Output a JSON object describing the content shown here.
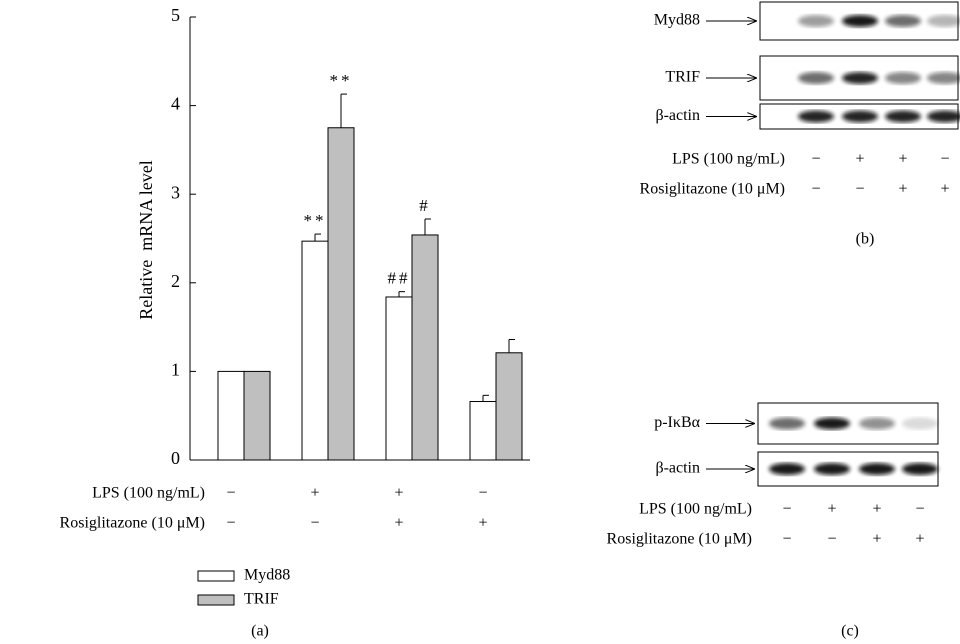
{
  "chart_data": {
    "type": "bar",
    "categories": [
      null,
      null,
      null,
      null
    ],
    "ylabel": "Relative  mRNA level",
    "ylim": [
      0,
      5
    ],
    "yticks": [
      0,
      1,
      2,
      3,
      4,
      5
    ],
    "series": [
      {
        "name": "Myd88",
        "color": "#ffffff",
        "values": [
          1,
          2.47,
          1.84,
          0.66
        ],
        "errors": [
          0,
          0.08,
          0.06,
          0.07
        ],
        "annotations": [
          null,
          "**",
          "##",
          null
        ]
      },
      {
        "name": "TRIF",
        "color": "#bfbfbf",
        "values": [
          1,
          3.75,
          2.54,
          1.21
        ],
        "errors": [
          0,
          0.38,
          0.18,
          0.15
        ],
        "annotations": [
          null,
          "**",
          "#",
          null
        ]
      }
    ],
    "conditions": [
      {
        "label": "LPS (100 ng/mL)",
        "signs": [
          "−",
          "+",
          "+",
          "−"
        ]
      },
      {
        "label": "Rosiglitazone (10 μM)",
        "signs": [
          "−",
          "−",
          "+",
          "+"
        ]
      }
    ],
    "panel_label": "(a)"
  },
  "blot_b": {
    "rows": [
      "Myd88",
      "TRIF",
      "β-actin"
    ],
    "conditions": [
      {
        "label": "LPS (100 ng/mL)",
        "signs": [
          "−",
          "+",
          "+",
          "−"
        ]
      },
      {
        "label": "Rosiglitazone (10 μM)",
        "signs": [
          "−",
          "−",
          "+",
          "+"
        ]
      }
    ],
    "panel_label": "(b)"
  },
  "blot_c": {
    "rows": [
      "p-IκBα",
      "β-actin"
    ],
    "conditions": [
      {
        "label": "LPS (100 ng/mL)",
        "signs": [
          "−",
          "+",
          "+",
          "−"
        ]
      },
      {
        "label": "Rosiglitazone (10 μM)",
        "signs": [
          "−",
          "−",
          "+",
          "+"
        ]
      }
    ],
    "panel_label": "(c)"
  }
}
